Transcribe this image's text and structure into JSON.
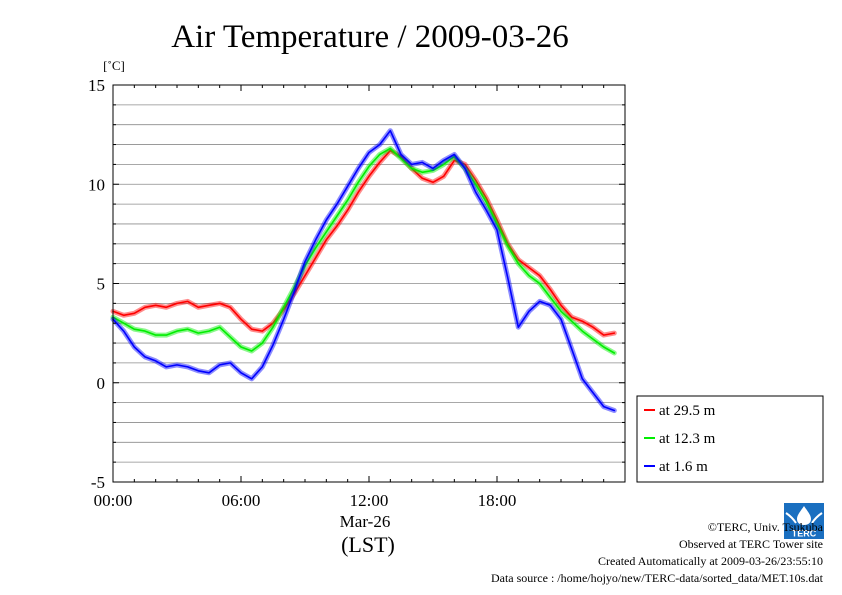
{
  "chart_data": {
    "type": "line",
    "title": "Air Temperature / 2009-03-26",
    "ylabel": "[˚C]",
    "xlabel_date": "Mar-26",
    "xlabel_unit": "(LST)",
    "ylim": [
      -5,
      15
    ],
    "xlim": [
      0,
      24
    ],
    "yticks": [
      {
        "value": 15,
        "label": "15"
      },
      {
        "value": 10,
        "label": "10"
      },
      {
        "value": 5,
        "label": "5"
      },
      {
        "value": 0,
        "label": "0"
      },
      {
        "value": -5,
        "label": "-5"
      }
    ],
    "xticks": [
      {
        "value": 0,
        "label": "00:00"
      },
      {
        "value": 6,
        "label": "06:00"
      },
      {
        "value": 12,
        "label": "12:00"
      },
      {
        "value": 18,
        "label": "18:00"
      }
    ],
    "grid": true,
    "legend_position": "right",
    "x": [
      0,
      0.5,
      1,
      1.5,
      2,
      2.5,
      3,
      3.5,
      4,
      4.5,
      5,
      5.5,
      6,
      6.5,
      7,
      7.5,
      8,
      8.5,
      9,
      9.5,
      10,
      10.5,
      11,
      11.5,
      12,
      12.5,
      13,
      13.5,
      14,
      14.5,
      15,
      15.5,
      16,
      16.5,
      17,
      17.5,
      18,
      18.5,
      19,
      19.5,
      20,
      20.5,
      21,
      21.5,
      22,
      22.5,
      23,
      23.5
    ],
    "series": [
      {
        "name": "at 29.5 m",
        "color": "#ff0000",
        "values": [
          3.6,
          3.4,
          3.5,
          3.8,
          3.9,
          3.8,
          4.0,
          4.1,
          3.8,
          3.9,
          4.0,
          3.8,
          3.2,
          2.7,
          2.6,
          3.0,
          3.7,
          4.5,
          5.4,
          6.3,
          7.2,
          7.9,
          8.7,
          9.6,
          10.4,
          11.1,
          11.7,
          11.4,
          10.8,
          10.3,
          10.1,
          10.4,
          11.2,
          11.0,
          10.2,
          9.3,
          8.2,
          7.0,
          6.2,
          5.8,
          5.4,
          4.7,
          3.9,
          3.3,
          3.1,
          2.8,
          2.4,
          2.5
        ]
      },
      {
        "name": "at 12.3 m",
        "color": "#00ee00",
        "values": [
          3.3,
          3.0,
          2.7,
          2.6,
          2.4,
          2.4,
          2.6,
          2.7,
          2.5,
          2.6,
          2.8,
          2.3,
          1.8,
          1.6,
          2.0,
          2.8,
          3.8,
          4.8,
          5.9,
          6.8,
          7.6,
          8.4,
          9.2,
          10.1,
          10.9,
          11.5,
          11.8,
          11.3,
          10.8,
          10.6,
          10.7,
          11.0,
          11.4,
          10.8,
          10.0,
          9.1,
          8.0,
          6.9,
          6.0,
          5.4,
          5.0,
          4.3,
          3.6,
          3.1,
          2.6,
          2.2,
          1.8,
          1.5
        ]
      },
      {
        "name": "at 1.6 m",
        "color": "#0000ff",
        "values": [
          3.2,
          2.6,
          1.8,
          1.3,
          1.1,
          0.8,
          0.9,
          0.8,
          0.6,
          0.5,
          0.9,
          1.0,
          0.5,
          0.2,
          0.8,
          1.9,
          3.2,
          4.6,
          6.1,
          7.2,
          8.2,
          9.0,
          9.9,
          10.8,
          11.6,
          12.0,
          12.7,
          11.5,
          11.0,
          11.1,
          10.8,
          11.2,
          11.5,
          10.8,
          9.6,
          8.7,
          7.7,
          5.3,
          2.8,
          3.6,
          4.1,
          3.9,
          3.2,
          1.7,
          0.2,
          -0.5,
          -1.2,
          -1.4
        ]
      }
    ]
  },
  "credits": {
    "copyright": "©TERC, Univ. Tsukuba",
    "site": "Observed at TERC Tower site",
    "created": "Created Automatically at 2009-03-26/23:55:10",
    "source": "Data source : /home/hojyo/new/TERC-data/sorted_data/MET.10s.dat",
    "logo_text": "TERC"
  }
}
